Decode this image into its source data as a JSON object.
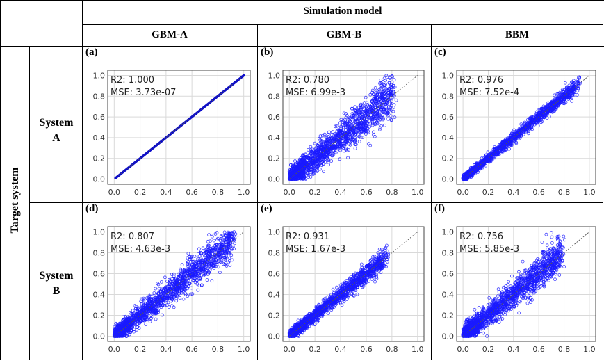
{
  "header": {
    "title": "Simulation model",
    "columns": [
      "GBM-A",
      "GBM-B",
      "BBM"
    ]
  },
  "row_header": {
    "title": "Target system",
    "rows": [
      {
        "line1": "System",
        "line2": "A"
      },
      {
        "line1": "System",
        "line2": "B"
      }
    ]
  },
  "colors": {
    "points": "#1a1aff",
    "diagonal": "#555555",
    "grid": "#d9d9d9"
  },
  "chart_data": [
    {
      "panel": "(a)",
      "type": "scatter",
      "row": "System A",
      "column": "GBM-A",
      "r2_label": "R2: 1.000",
      "mse_label": "MSE: 3.73e-07",
      "xlim": [
        0,
        1.0
      ],
      "ylim": [
        0,
        1.0
      ],
      "xticks": [
        "0.0",
        "0.2",
        "0.4",
        "0.6",
        "0.8",
        "1.0"
      ],
      "yticks": [
        "0.0",
        "0.2",
        "0.4",
        "0.6",
        "0.8",
        "1.0"
      ],
      "spread": 0.0,
      "x_max": 1.0,
      "diagonal": "y = x"
    },
    {
      "panel": "(b)",
      "type": "scatter",
      "row": "System A",
      "column": "GBM-B",
      "r2_label": "R2: 0.780",
      "mse_label": "MSE: 6.99e-3",
      "xlim": [
        0,
        1.0
      ],
      "ylim": [
        0,
        1.0
      ],
      "xticks": [
        "0.0",
        "0.2",
        "0.4",
        "0.6",
        "0.8",
        "1.0"
      ],
      "yticks": [
        "0.0",
        "0.2",
        "0.4",
        "0.6",
        "0.8",
        "1.0"
      ],
      "spread": 0.084,
      "x_max": 0.88,
      "diagonal": "y = x"
    },
    {
      "panel": "(c)",
      "type": "scatter",
      "row": "System A",
      "column": "BBM",
      "r2_label": "R2: 0.976",
      "mse_label": "MSE: 7.52e-4",
      "xlim": [
        0,
        1.0
      ],
      "ylim": [
        0,
        1.0
      ],
      "xticks": [
        "0.0",
        "0.2",
        "0.4",
        "0.6",
        "0.8",
        "1.0"
      ],
      "yticks": [
        "0.0",
        "0.2",
        "0.4",
        "0.6",
        "0.8",
        "1.0"
      ],
      "spread": 0.027,
      "x_max": 1.0,
      "diagonal": "y = x"
    },
    {
      "panel": "(d)",
      "type": "scatter",
      "row": "System B",
      "column": "GBM-A",
      "r2_label": "R2: 0.807",
      "mse_label": "MSE: 4.63e-3",
      "xlim": [
        0,
        1.0
      ],
      "ylim": [
        0,
        1.0
      ],
      "xticks": [
        "0.0",
        "0.2",
        "0.4",
        "0.6",
        "0.8",
        "1.0"
      ],
      "yticks": [
        "0.0",
        "0.2",
        "0.4",
        "0.6",
        "0.8",
        "1.0"
      ],
      "spread": 0.068,
      "x_max": 1.0,
      "diagonal": "y = x"
    },
    {
      "panel": "(e)",
      "type": "scatter",
      "row": "System B",
      "column": "GBM-B",
      "r2_label": "R2: 0.931",
      "mse_label": "MSE: 1.67e-3",
      "xlim": [
        0,
        1.0
      ],
      "ylim": [
        0,
        1.0
      ],
      "xticks": [
        "0.0",
        "0.2",
        "0.4",
        "0.6",
        "0.8",
        "1.0"
      ],
      "yticks": [
        "0.0",
        "0.2",
        "0.4",
        "0.6",
        "0.8",
        "1.0"
      ],
      "spread": 0.041,
      "x_max": 0.82,
      "diagonal": "y = x"
    },
    {
      "panel": "(f)",
      "type": "scatter",
      "row": "System B",
      "column": "BBM",
      "r2_label": "R2: 0.756",
      "mse_label": "MSE: 5.85e-3",
      "xlim": [
        0,
        1.0
      ],
      "ylim": [
        0,
        1.0
      ],
      "xticks": [
        "0.0",
        "0.2",
        "0.4",
        "0.6",
        "0.8",
        "1.0"
      ],
      "yticks": [
        "0.0",
        "0.2",
        "0.4",
        "0.6",
        "0.8",
        "1.0"
      ],
      "spread": 0.076,
      "x_max": 0.85,
      "diagonal": "y = x"
    }
  ]
}
